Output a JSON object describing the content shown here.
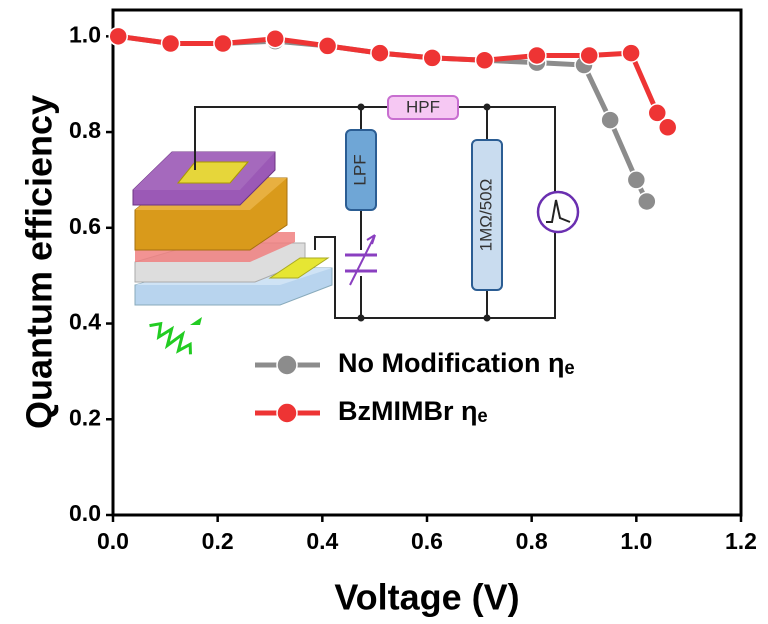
{
  "chart_data": {
    "type": "line",
    "x_label": "Voltage (V)",
    "y_label": "Quantum efficiency",
    "xlim": [
      0,
      1.2
    ],
    "ylim": [
      0,
      1.055
    ],
    "xticks": [
      {
        "value": 0,
        "label": "0.0"
      },
      0.2,
      0.4,
      0.6,
      0.8,
      {
        "value": 1,
        "label": "1.0"
      },
      1.2
    ],
    "yticks": [
      {
        "value": 0,
        "label": "0.0"
      },
      0.2,
      0.4,
      0.6,
      0.8,
      {
        "value": 1,
        "label": "1.0"
      }
    ],
    "series": [
      {
        "name": "No Modification ηₑ",
        "color": "#8c8c8c",
        "x": [
          0.01,
          0.11,
          0.21,
          0.31,
          0.41,
          0.51,
          0.61,
          0.71,
          0.81,
          0.9,
          0.95,
          1.0,
          1.02
        ],
        "values": [
          1.0,
          0.985,
          0.985,
          0.99,
          0.98,
          0.965,
          0.955,
          0.95,
          0.945,
          0.94,
          0.825,
          0.7,
          0.655
        ]
      },
      {
        "name": "BzMIMBr ηₑ",
        "color": "#ee3434",
        "x": [
          0.01,
          0.11,
          0.21,
          0.31,
          0.41,
          0.51,
          0.61,
          0.71,
          0.81,
          0.91,
          0.99,
          1.04,
          1.06
        ],
        "values": [
          1.0,
          0.985,
          0.985,
          0.995,
          0.98,
          0.965,
          0.955,
          0.95,
          0.96,
          0.96,
          0.965,
          0.84,
          0.81
        ]
      }
    ],
    "annotations": [
      "HPF",
      "LPF",
      "1MΩ/50Ω"
    ]
  }
}
